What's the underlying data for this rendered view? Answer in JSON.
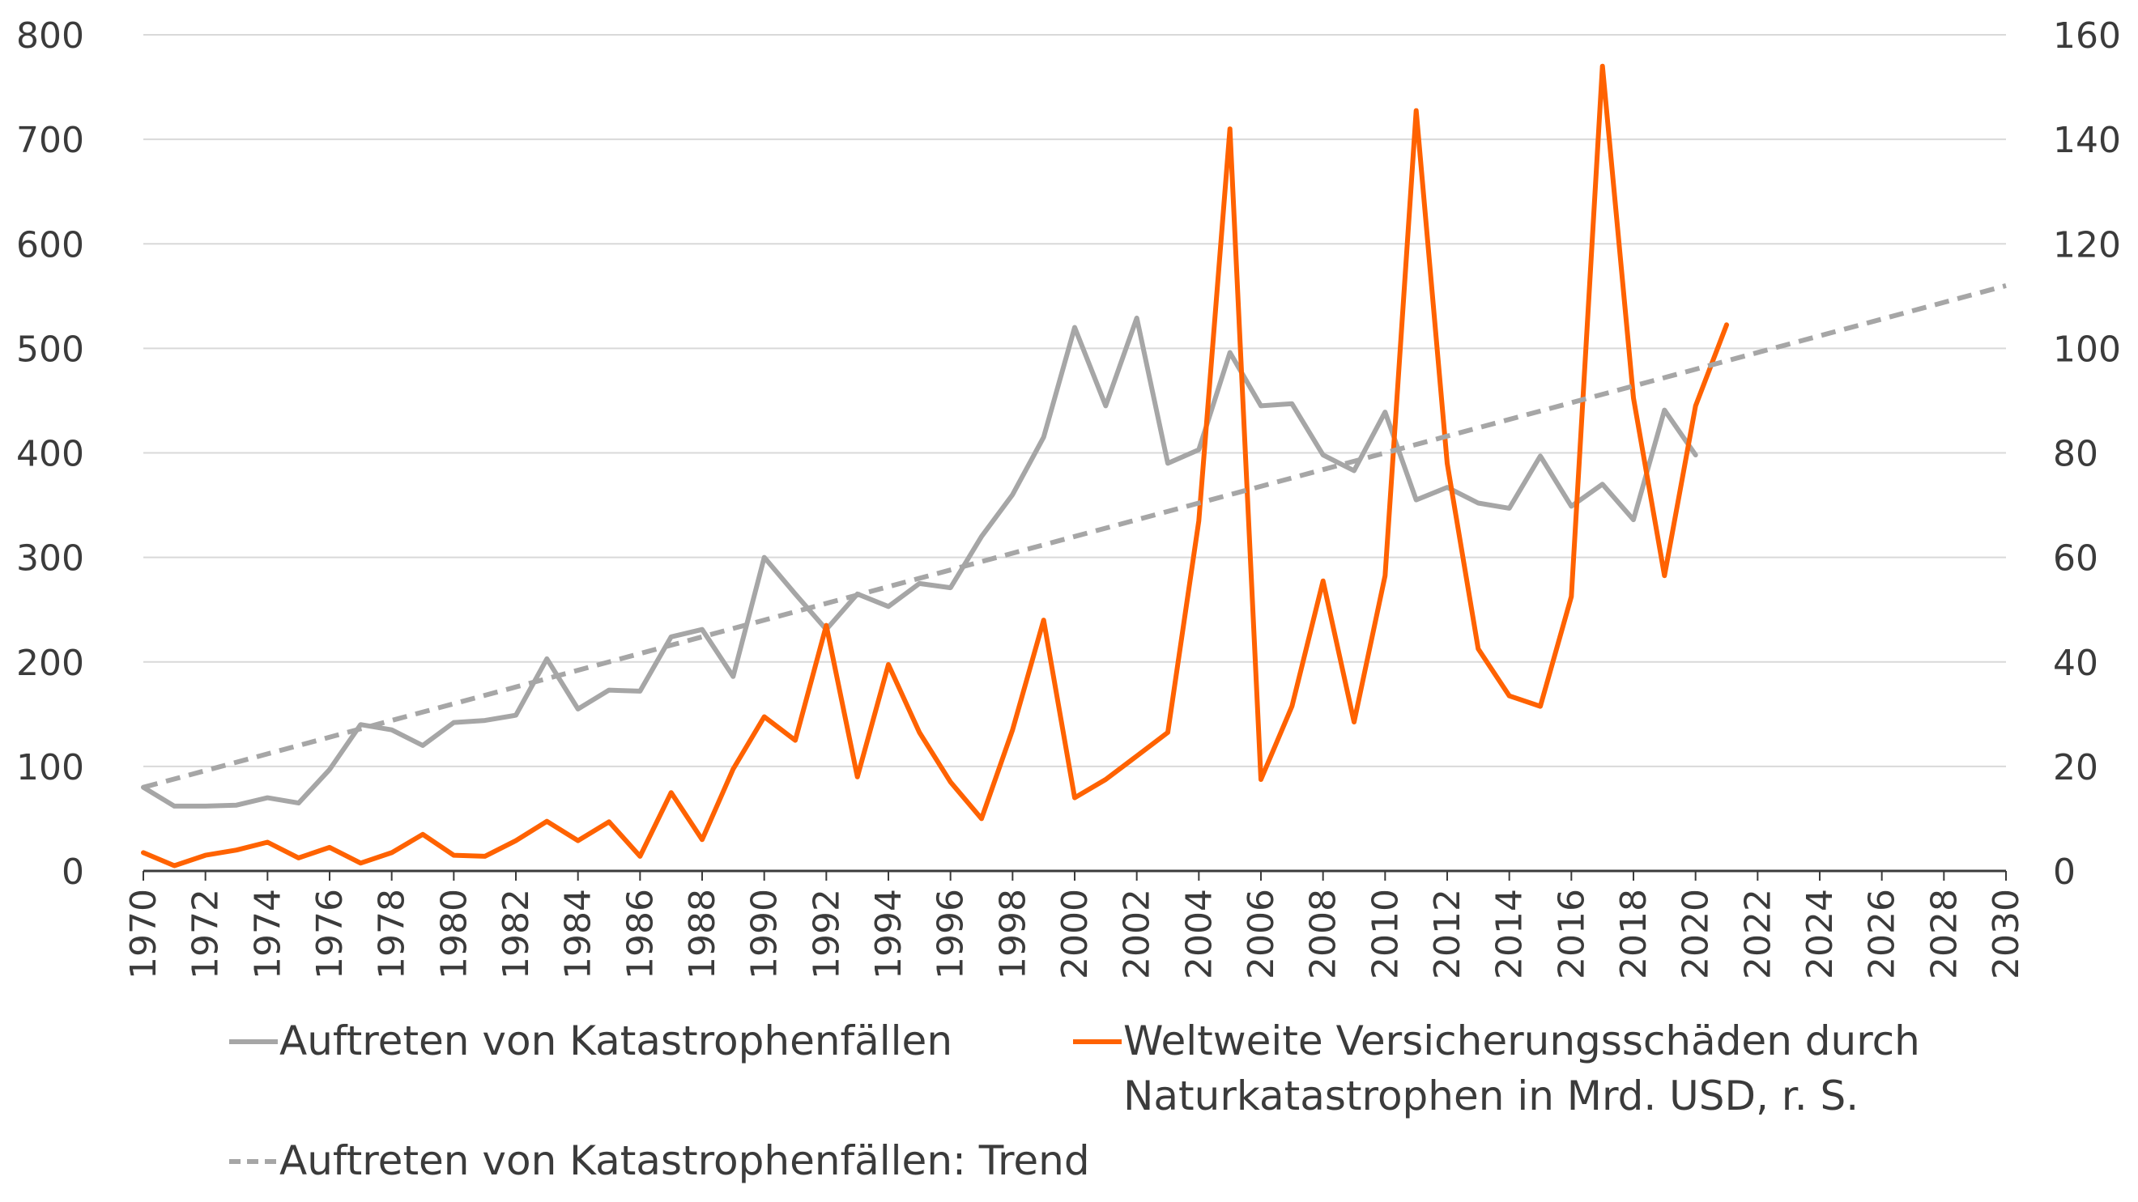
{
  "chart_data": {
    "type": "line",
    "x": [
      1970,
      1971,
      1972,
      1973,
      1974,
      1975,
      1976,
      1977,
      1978,
      1979,
      1980,
      1981,
      1982,
      1983,
      1984,
      1985,
      1986,
      1987,
      1988,
      1989,
      1990,
      1991,
      1992,
      1993,
      1994,
      1995,
      1996,
      1997,
      1998,
      1999,
      2000,
      2001,
      2002,
      2003,
      2004,
      2005,
      2006,
      2007,
      2008,
      2009,
      2010,
      2011,
      2012,
      2013,
      2014,
      2015,
      2016,
      2017,
      2018,
      2019,
      2020,
      2021
    ],
    "xlim": [
      1970,
      2030
    ],
    "x_ticks": [
      "1970",
      "1972",
      "1974",
      "1976",
      "1978",
      "1980",
      "1982",
      "1984",
      "1986",
      "1988",
      "1990",
      "1992",
      "1994",
      "1996",
      "1998",
      "2000",
      "2002",
      "2004",
      "2006",
      "2008",
      "2010",
      "2012",
      "2014",
      "2016",
      "2018",
      "2020",
      "2022",
      "2024",
      "2026",
      "2028",
      "2030"
    ],
    "ylim_left": [
      0,
      800
    ],
    "y_ticks_left": [
      "0",
      "100",
      "200",
      "300",
      "400",
      "500",
      "600",
      "700",
      "800"
    ],
    "ylim_right": [
      0,
      160
    ],
    "y_ticks_right": [
      "0",
      "20",
      "40",
      "60",
      "80",
      "100",
      "120",
      "140",
      "160"
    ],
    "grid": true,
    "legend_position": "bottom",
    "series": [
      {
        "name": "Auftreten von Katastrophenfällen",
        "axis": "left",
        "color": "#a6a6a6",
        "dash": "solid",
        "x": [
          1970,
          1971,
          1972,
          1973,
          1974,
          1975,
          1976,
          1977,
          1978,
          1979,
          1980,
          1981,
          1982,
          1983,
          1984,
          1985,
          1986,
          1987,
          1988,
          1989,
          1990,
          1991,
          1992,
          1993,
          1994,
          1995,
          1996,
          1997,
          1998,
          1999,
          2000,
          2001,
          2002,
          2003,
          2004,
          2005,
          2006,
          2007,
          2008,
          2009,
          2010,
          2011,
          2012,
          2013,
          2014,
          2015,
          2016,
          2017,
          2018,
          2019,
          2020
        ],
        "values": [
          80,
          62,
          62,
          63,
          70,
          65,
          97,
          140,
          135,
          120,
          142,
          144,
          149,
          203,
          155,
          173,
          172,
          224,
          231,
          186,
          300,
          265,
          231,
          265,
          253,
          275,
          271,
          320,
          360,
          415,
          520,
          445,
          529,
          390,
          403,
          496,
          445,
          447,
          398,
          383,
          439,
          355,
          367,
          352,
          347,
          397,
          349,
          370,
          336,
          441,
          398
        ]
      },
      {
        "name": "Weltweite Versicherungsschäden durch Naturkatastrophen in Mrd. USD, r. S.",
        "axis": "right",
        "color": "#ff6200",
        "dash": "solid",
        "x": [
          1970,
          1971,
          1972,
          1973,
          1974,
          1975,
          1976,
          1977,
          1978,
          1979,
          1980,
          1981,
          1982,
          1983,
          1984,
          1985,
          1986,
          1987,
          1988,
          1989,
          1990,
          1991,
          1992,
          1993,
          1994,
          1995,
          1996,
          1997,
          1998,
          1999,
          2000,
          2001,
          2002,
          2003,
          2004,
          2005,
          2006,
          2007,
          2008,
          2009,
          2010,
          2011,
          2012,
          2013,
          2014,
          2015,
          2016,
          2017,
          2018,
          2019,
          2020,
          2021
        ],
        "values": [
          3.5,
          1,
          3,
          4,
          5.5,
          2.5,
          4.5,
          1.5,
          3.5,
          7,
          3,
          2.8,
          5.8,
          9.5,
          5.8,
          9.4,
          2.8,
          15,
          6,
          19.5,
          29.5,
          25,
          47,
          18,
          39.5,
          26.5,
          17,
          10,
          27,
          48,
          14,
          17.5,
          22,
          26.5,
          67,
          142,
          17.5,
          31.5,
          55.5,
          28.5,
          56.5,
          145.5,
          78,
          42.5,
          33.5,
          31.5,
          52.5,
          154,
          90.5,
          56.5,
          89,
          104.5
        ]
      },
      {
        "name": "Auftreten von Katastrophenfällen: Trend",
        "axis": "left",
        "color": "#a6a6a6",
        "dash": "dashed",
        "x": [
          1970,
          2030
        ],
        "values": [
          80,
          560
        ]
      }
    ],
    "legend_lines": [
      [
        "Auftreten von Katastrophenfällen"
      ],
      [
        "Weltweite Versicherungsschäden durch",
        "Naturkatastrophen in Mrd. USD, r. S."
      ],
      [
        "Auftreten von Katastrophenfällen: Trend"
      ]
    ]
  }
}
